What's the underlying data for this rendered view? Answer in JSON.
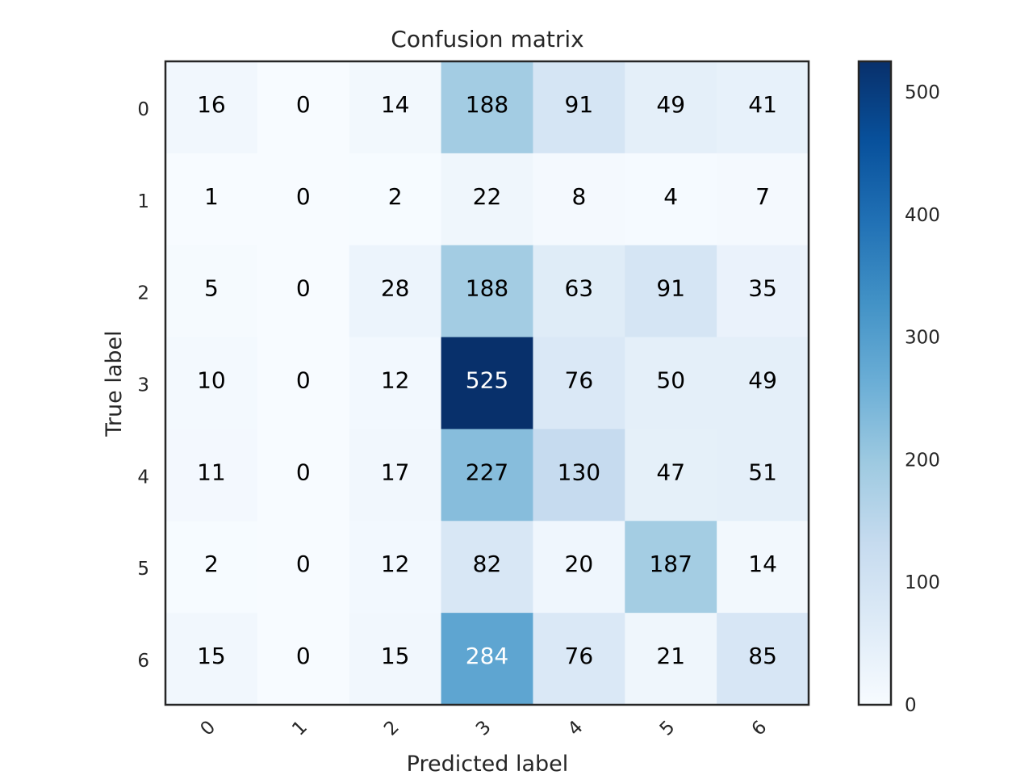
{
  "chart_data": {
    "type": "heatmap",
    "title": "Confusion matrix",
    "xlabel": "Predicted label",
    "ylabel": "True label",
    "x_tick_labels": [
      "0",
      "1",
      "2",
      "3",
      "4",
      "5",
      "6"
    ],
    "y_tick_labels": [
      "0",
      "1",
      "2",
      "3",
      "4",
      "5",
      "6"
    ],
    "matrix": [
      [
        16,
        0,
        14,
        188,
        91,
        49,
        41
      ],
      [
        1,
        0,
        2,
        22,
        8,
        4,
        7
      ],
      [
        5,
        0,
        28,
        188,
        63,
        91,
        35
      ],
      [
        10,
        0,
        12,
        525,
        76,
        50,
        49
      ],
      [
        11,
        0,
        17,
        227,
        130,
        47,
        51
      ],
      [
        2,
        0,
        12,
        82,
        20,
        187,
        14
      ],
      [
        15,
        0,
        15,
        284,
        76,
        21,
        85
      ]
    ],
    "colormap": "Blues",
    "color_low": "#f7fbff",
    "color_high": "#08306b",
    "colorbar": {
      "min": 0,
      "max": 525,
      "ticks": [
        "0",
        "100",
        "200",
        "300",
        "400",
        "500"
      ]
    },
    "text_color_dark": "#000000",
    "text_color_light": "#ffffff",
    "grid": false
  }
}
